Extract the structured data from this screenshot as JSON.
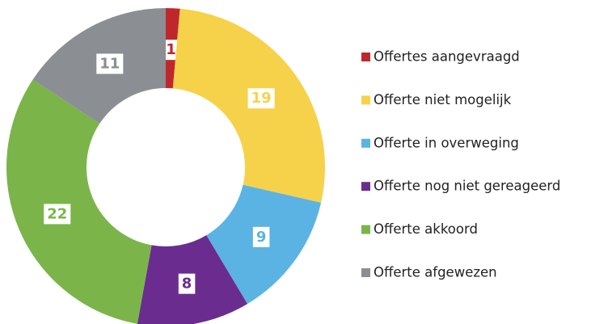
{
  "chart_data": {
    "type": "donut",
    "categories": [
      "Offertes aangevraagd",
      "Offerte niet mogelijk",
      "Offerte in overweging",
      "Offerte nog niet gereageerd",
      "Offerte akkoord",
      "Offerte afgewezen"
    ],
    "values": [
      1,
      19,
      9,
      8,
      22,
      11
    ],
    "colors": [
      "#c0272d",
      "#f6d24a",
      "#5bb3e4",
      "#6a2d8f",
      "#7bb54a",
      "#8b8e92"
    ],
    "legend": "right"
  }
}
